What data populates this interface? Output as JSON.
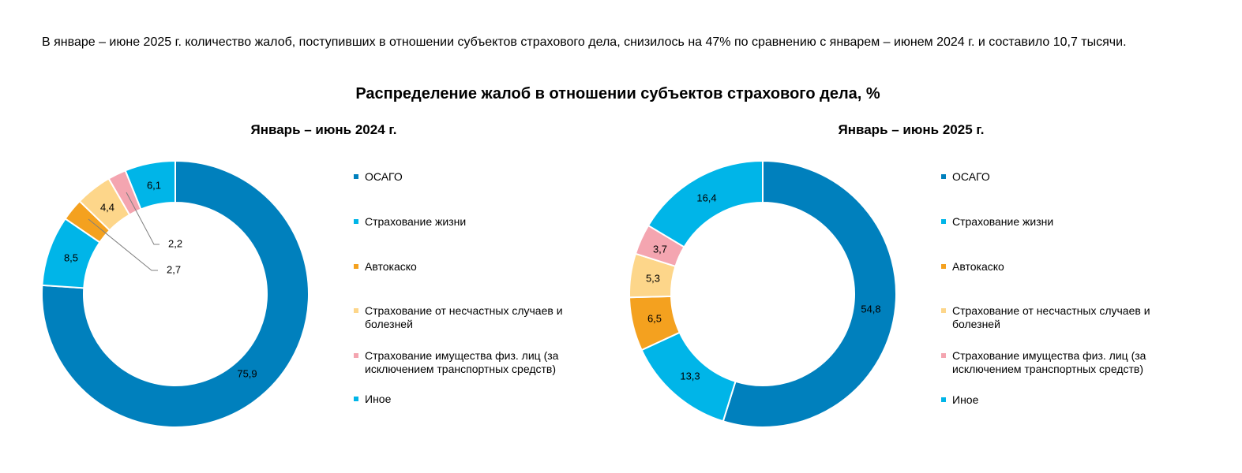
{
  "intro_text": "В январе – июне 2025 г. количество жалоб, поступивших в отношении субъектов страхового дела, снизилось на 47% по сравнению с январем – июнем 2024 г. и составило 10,7 тысячи.",
  "figure_title": "Распределение жалоб в отношении субъектов страхового дела, %",
  "categories": [
    "ОСАГО",
    "Страхование жизни",
    "Автокаско",
    "Страхование от несчастных случаев и болезней",
    "Страхование имущества физ. лиц (за исключением транспортных средств)",
    "Иное"
  ],
  "colors": [
    "#0080bd",
    "#00b5e8",
    "#f4a11f",
    "#fdd68a",
    "#f4a5b0",
    "#00b5e8"
  ],
  "chart_data": [
    {
      "type": "donut",
      "title": "Январь – июнь 2024 г.",
      "categories": [
        "ОСАГО",
        "Страхование жизни",
        "Автокаско",
        "Страхование от несчастных случаев и болезней",
        "Страхование имущества физ. лиц (за исключением транспортных средств)",
        "Иное"
      ],
      "values": [
        75.9,
        8.5,
        2.7,
        4.4,
        2.2,
        6.1
      ],
      "value_labels": [
        "75,9",
        "8,5",
        "2,7",
        "4,4",
        "2,2",
        "6,1"
      ],
      "legend_position": "right"
    },
    {
      "type": "donut",
      "title": "Январь – июнь 2025 г.",
      "categories": [
        "ОСАГО",
        "Страхование жизни",
        "Автокаско",
        "Страхование от несчастных случаев и болезней",
        "Страхование имущества физ. лиц (за исключением транспортных средств)",
        "Иное"
      ],
      "values": [
        54.8,
        13.3,
        6.5,
        5.3,
        3.7,
        16.4
      ],
      "value_labels": [
        "54,8",
        "13,3",
        "6,5",
        "5,3",
        "3,7",
        "16,4"
      ],
      "legend_position": "right"
    }
  ]
}
